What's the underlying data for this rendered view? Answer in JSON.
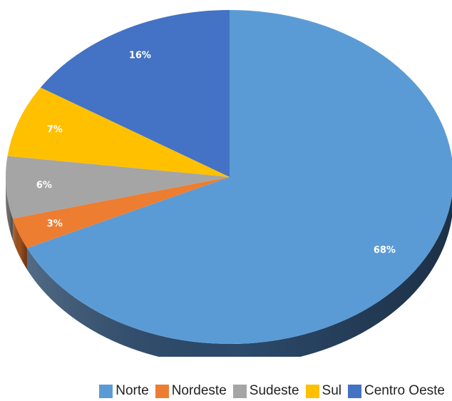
{
  "chart_data": {
    "type": "pie",
    "categories": [
      "Norte",
      "Nordeste",
      "Sudeste",
      "Sul",
      "Centro Oeste"
    ],
    "values": [
      68,
      3,
      6,
      7,
      16
    ],
    "labels": [
      "68%",
      "3%",
      "6%",
      "7%",
      "16%"
    ],
    "colors": [
      "#5b9bd5",
      "#ed7d31",
      "#a5a5a5",
      "#ffc000",
      "#4472c4"
    ],
    "side_colors": [
      "#2c4a6b",
      "#9c4f1c",
      "#6b6b6b",
      "#a67c00",
      "#2b4a80"
    ],
    "legend_position": "bottom-right",
    "style": "3d"
  }
}
